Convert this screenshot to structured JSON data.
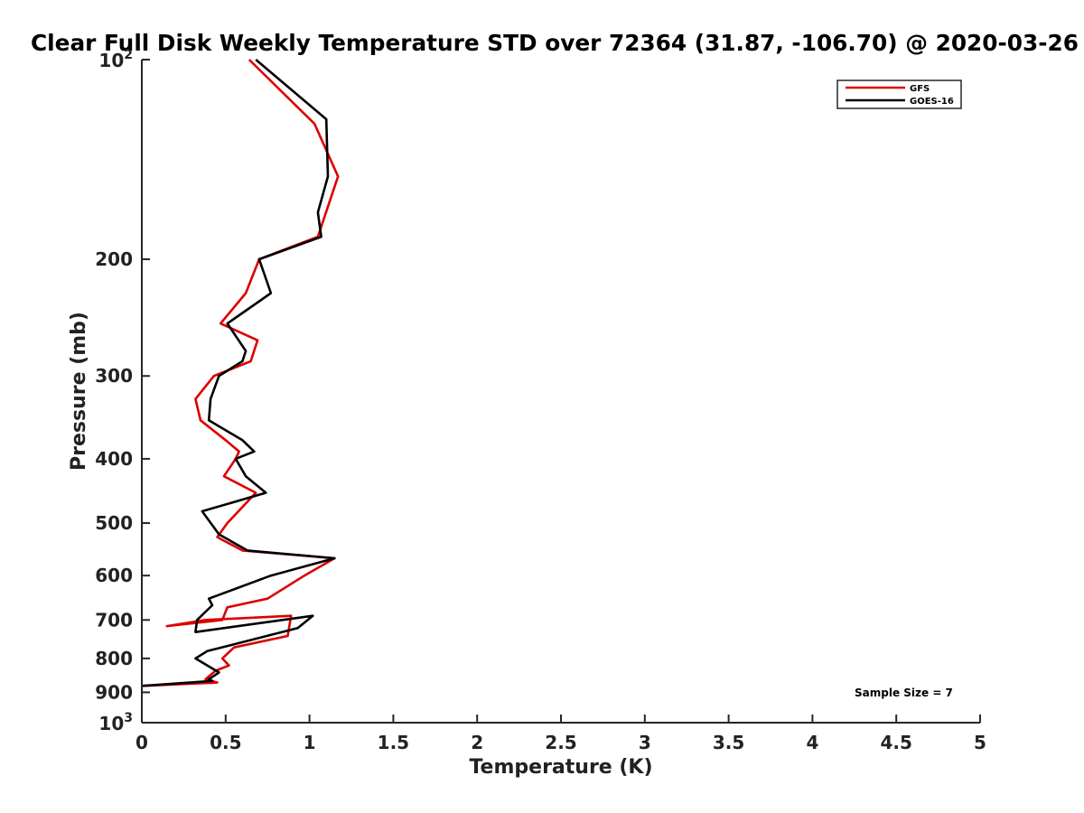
{
  "chart_data": {
    "type": "line",
    "title": "Clear Full Disk Weekly Temperature STD over 72364 (31.87, -106.70) @ 2020-03-26",
    "xlabel": "Temperature (K)",
    "ylabel": "Pressure (mb)",
    "xlim": [
      0,
      5
    ],
    "ylim": [
      100,
      1000
    ],
    "y_scale": "log",
    "y_reversed": true,
    "x_ticks": [
      "0",
      "0.5",
      "1",
      "1.5",
      "2",
      "2.5",
      "3",
      "3.5",
      "4",
      "4.5",
      "5"
    ],
    "y_ticks": [
      {
        "value": 100,
        "base": "10",
        "exp": "2"
      },
      {
        "value": 200,
        "label": "200"
      },
      {
        "value": 300,
        "label": "300"
      },
      {
        "value": 400,
        "label": "400"
      },
      {
        "value": 500,
        "label": "500"
      },
      {
        "value": 600,
        "label": "600"
      },
      {
        "value": 700,
        "label": "700"
      },
      {
        "value": 800,
        "label": "800"
      },
      {
        "value": 900,
        "label": "900"
      },
      {
        "value": 1000,
        "base": "10",
        "exp": "3"
      }
    ],
    "legend_position": "top-right",
    "grid": false,
    "annotation": "Sample Size = 7",
    "series": [
      {
        "name": "GFS",
        "color": "#dd0000",
        "points": [
          [
            0.64,
            100
          ],
          [
            1.03,
            125
          ],
          [
            1.17,
            150
          ],
          [
            1.05,
            185
          ],
          [
            0.7,
            200
          ],
          [
            0.62,
            225
          ],
          [
            0.47,
            250
          ],
          [
            0.69,
            265
          ],
          [
            0.65,
            285
          ],
          [
            0.43,
            300
          ],
          [
            0.32,
            325
          ],
          [
            0.35,
            350
          ],
          [
            0.5,
            375
          ],
          [
            0.58,
            390
          ],
          [
            0.56,
            400
          ],
          [
            0.49,
            425
          ],
          [
            0.68,
            450
          ],
          [
            0.51,
            500
          ],
          [
            0.45,
            525
          ],
          [
            0.6,
            550
          ],
          [
            1.15,
            565
          ],
          [
            0.97,
            600
          ],
          [
            0.75,
            650
          ],
          [
            0.51,
            670
          ],
          [
            0.48,
            700
          ],
          [
            0.15,
            715
          ],
          [
            0.38,
            700
          ],
          [
            0.89,
            690
          ],
          [
            0.87,
            740
          ],
          [
            0.55,
            770
          ],
          [
            0.48,
            800
          ],
          [
            0.52,
            820
          ],
          [
            0.44,
            835
          ],
          [
            0.38,
            860
          ],
          [
            0.45,
            870
          ],
          [
            0.0,
            880
          ]
        ]
      },
      {
        "name": "GOES-16",
        "color": "#000000",
        "points": [
          [
            0.68,
            100
          ],
          [
            1.1,
            123
          ],
          [
            1.11,
            150
          ],
          [
            1.05,
            170
          ],
          [
            1.07,
            185
          ],
          [
            0.7,
            200
          ],
          [
            0.77,
            225
          ],
          [
            0.51,
            250
          ],
          [
            0.62,
            275
          ],
          [
            0.6,
            285
          ],
          [
            0.46,
            300
          ],
          [
            0.41,
            325
          ],
          [
            0.4,
            350
          ],
          [
            0.6,
            375
          ],
          [
            0.67,
            390
          ],
          [
            0.56,
            400
          ],
          [
            0.62,
            425
          ],
          [
            0.74,
            450
          ],
          [
            0.36,
            480
          ],
          [
            0.46,
            520
          ],
          [
            0.63,
            550
          ],
          [
            1.15,
            565
          ],
          [
            0.77,
            600
          ],
          [
            0.4,
            650
          ],
          [
            0.42,
            665
          ],
          [
            0.33,
            700
          ],
          [
            0.32,
            730
          ],
          [
            1.02,
            690
          ],
          [
            0.93,
            720
          ],
          [
            0.39,
            780
          ],
          [
            0.32,
            800
          ],
          [
            0.46,
            840
          ],
          [
            0.4,
            860
          ],
          [
            0.42,
            865
          ],
          [
            0.0,
            880
          ]
        ]
      }
    ]
  }
}
